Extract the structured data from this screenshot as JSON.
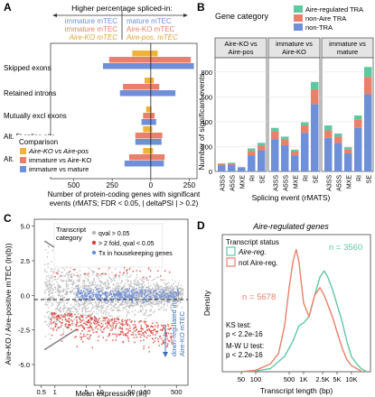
{
  "panels": {
    "A": {
      "letter": "A",
      "header": "Higher percentage spliced-in:",
      "legend_left": [
        "immature mTEC",
        "immature mTEC",
        "Aire-KO mTEC"
      ],
      "legend_right": [
        "mature mTEC",
        "Aire-KO mTEC",
        "Aire-pos. mTEC"
      ],
      "comparison_title": "Comparison",
      "comparisons": [
        "Aire-KO vs Aire-pos",
        "immature vs Aire-KO",
        "immature vs mature"
      ],
      "xlabel": "Number of protein-coding genes with significant events (rMATS; FDR < 0.05, | deltaPSI | > 0.2)",
      "xticks": [
        "500",
        "250",
        "0",
        "250"
      ],
      "categories": [
        "Skipped exons",
        "Retained introns",
        "Mutually excl exons",
        "Alt. 5' splice site",
        "Alt. 3' splice site"
      ]
    },
    "B": {
      "letter": "B",
      "legend_title": "Gene category",
      "legend": [
        "Aire-regulated TRA",
        "non-Aire TRA",
        "non-TRA"
      ],
      "facets": [
        "Aire-KO vs Aire-pos",
        "immature vs Aire-KO",
        "immature vs mature"
      ],
      "ylabel": "Number of significant events",
      "xlabel": "Splicing event (rMATS)",
      "yticks": [
        "0",
        "200",
        "400",
        "600",
        "800"
      ],
      "event_types": [
        "A3SS",
        "A5SS",
        "MXE",
        "RI",
        "SE"
      ]
    },
    "C": {
      "letter": "C",
      "legend_title": "Transcript category",
      "legend": [
        "qval > 0.05",
        "> 2 fold, qval < 0.05",
        "Tx in housekeeping genes"
      ],
      "ylabel": "Aire-KO / Aire-positive mTEC (ln(b))",
      "xlabel": "Mean expression (ln)",
      "xticks": [
        "0.5",
        "1",
        "5",
        "10",
        "50",
        "100",
        "500"
      ],
      "yticks": [
        "5.0",
        "2.5",
        "0.0",
        "-2.5",
        "-5.0"
      ],
      "annotation": "down-regulated in Aire-KO mTEC"
    },
    "D": {
      "letter": "D",
      "title": "Aire-regulated genes",
      "legend_title": "Transcript status",
      "legend": [
        "Aire-reg.",
        "not Aire-reg."
      ],
      "n_labels": [
        "n = 3560",
        "n = 5678"
      ],
      "stats": [
        "KS test:",
        "p < 2.2e-16",
        "M-W U test:",
        "p < 2.2e-16"
      ],
      "ylabel": "Density",
      "xlabel": "Transcript length (bp)",
      "xticks": [
        "50",
        "100",
        "500",
        "1K",
        "2.5K",
        "5K",
        "10K"
      ]
    }
  },
  "colors": {
    "orange": "#f0b23a",
    "salmon": "#e8806a",
    "blue": "#6f8fd8",
    "teal": "#5ec8a0",
    "red": "#d9423a",
    "grey": "#b8b8b8"
  },
  "chart_data": [
    {
      "panel": "A",
      "type": "bar",
      "categories": [
        "Skipped exons",
        "Retained introns",
        "Mutually excl exons",
        "Alt. 5' splice site",
        "Alt. 3' splice site"
      ],
      "series": [
        {
          "name": "Aire-KO vs Aire-pos",
          "left": [
            120,
            40,
            30,
            50,
            50
          ],
          "right": [
            45,
            20,
            5,
            10,
            15
          ]
        },
        {
          "name": "immature vs Aire-KO",
          "left": [
            270,
            180,
            50,
            100,
            140
          ],
          "right": [
            260,
            55,
            25,
            75,
            90
          ]
        },
        {
          "name": "immature vs mature",
          "left": [
            310,
            200,
            60,
            100,
            170
          ],
          "right": [
            280,
            160,
            35,
            70,
            85
          ]
        }
      ],
      "xlim": [
        -650,
        300
      ]
    },
    {
      "panel": "B",
      "type": "bar",
      "categories": [
        "A3SS",
        "A5SS",
        "MXE",
        "RI",
        "SE"
      ],
      "facets": [
        {
          "name": "Aire-KO vs Aire-pos",
          "non-TRA": [
            50,
            55,
            30,
            130,
            170
          ],
          "non-Aire TRA": [
            10,
            10,
            5,
            35,
            40
          ],
          "Aire-regulated TRA": [
            5,
            5,
            2,
            20,
            20
          ]
        },
        {
          "name": "immature vs Aire-KO",
          "non-TRA": [
            260,
            210,
            130,
            310,
            540
          ],
          "non-Aire TRA": [
            60,
            50,
            30,
            60,
            120
          ],
          "Aire-regulated TRA": [
            30,
            20,
            15,
            25,
            60
          ]
        },
        {
          "name": "immature vs mature",
          "non-TRA": [
            270,
            230,
            145,
            350,
            620
          ],
          "non-Aire TRA": [
            60,
            50,
            30,
            70,
            140
          ],
          "Aire-regulated TRA": [
            40,
            25,
            20,
            30,
            80
          ]
        }
      ],
      "ylim": [
        0,
        900
      ]
    },
    {
      "panel": "C",
      "type": "scatter",
      "xlim": [
        0.35,
        900
      ],
      "ylim": [
        -6.5,
        5.5
      ]
    },
    {
      "panel": "D",
      "type": "line",
      "xlim": [
        20,
        25000
      ],
      "series": [
        {
          "name": "Aire-reg.",
          "x": [
            50,
            100,
            200,
            400,
            600,
            800,
            1000,
            1300,
            1700,
            2200,
            2700,
            3200,
            4000,
            5000,
            6500,
            8000,
            10000,
            13000,
            16000,
            20000
          ],
          "y": [
            0,
            0.005,
            0.02,
            0.1,
            0.2,
            0.3,
            0.32,
            0.36,
            0.5,
            0.62,
            0.66,
            0.62,
            0.54,
            0.44,
            0.32,
            0.2,
            0.1,
            0.05,
            0.02,
            0.005
          ]
        },
        {
          "name": "not Aire-reg.",
          "x": [
            50,
            100,
            200,
            300,
            400,
            500,
            600,
            700,
            800,
            1000,
            1300,
            1700,
            2200,
            2700,
            3200,
            4000,
            5000,
            6500,
            8000,
            10000,
            13000,
            16000
          ],
          "y": [
            0,
            0.01,
            0.05,
            0.12,
            0.3,
            0.55,
            0.72,
            0.8,
            0.72,
            0.45,
            0.36,
            0.5,
            0.55,
            0.5,
            0.44,
            0.36,
            0.26,
            0.15,
            0.08,
            0.04,
            0.02,
            0.005
          ]
        }
      ],
      "ylim": [
        0,
        0.85
      ]
    }
  ]
}
